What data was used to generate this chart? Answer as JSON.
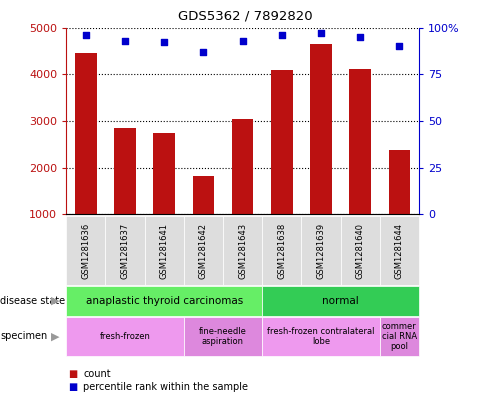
{
  "title": "GDS5362 / 7892820",
  "samples": [
    "GSM1281636",
    "GSM1281637",
    "GSM1281641",
    "GSM1281642",
    "GSM1281643",
    "GSM1281638",
    "GSM1281639",
    "GSM1281640",
    "GSM1281644"
  ],
  "counts": [
    4450,
    2850,
    2750,
    1820,
    3050,
    4100,
    4650,
    4120,
    2380
  ],
  "percentiles": [
    96,
    93,
    92,
    87,
    93,
    96,
    97,
    95,
    90
  ],
  "ylim_left": [
    1000,
    5000
  ],
  "ylim_right": [
    0,
    100
  ],
  "yticks_left": [
    1000,
    2000,
    3000,
    4000,
    5000
  ],
  "yticks_right": [
    0,
    25,
    50,
    75,
    100
  ],
  "bar_color": "#bb1111",
  "dot_color": "#0000cc",
  "bg_color": "#ffffff",
  "disease_state_groups": [
    {
      "label": "anaplastic thyroid carcinomas",
      "start": 0,
      "end": 5,
      "color": "#66ee66"
    },
    {
      "label": "normal",
      "start": 5,
      "end": 9,
      "color": "#33cc55"
    }
  ],
  "specimen_groups": [
    {
      "label": "fresh-frozen",
      "start": 0,
      "end": 3,
      "color": "#ee99ee"
    },
    {
      "label": "fine-needle\naspiration",
      "start": 3,
      "end": 5,
      "color": "#dd88dd"
    },
    {
      "label": "fresh-frozen contralateral\nlobe",
      "start": 5,
      "end": 8,
      "color": "#ee99ee"
    },
    {
      "label": "commer\ncial RNA\npool",
      "start": 8,
      "end": 9,
      "color": "#dd88dd"
    }
  ],
  "legend_count_color": "#bb1111",
  "legend_dot_color": "#0000cc",
  "bar_width": 0.55,
  "tick_label_bg": "#dddddd"
}
